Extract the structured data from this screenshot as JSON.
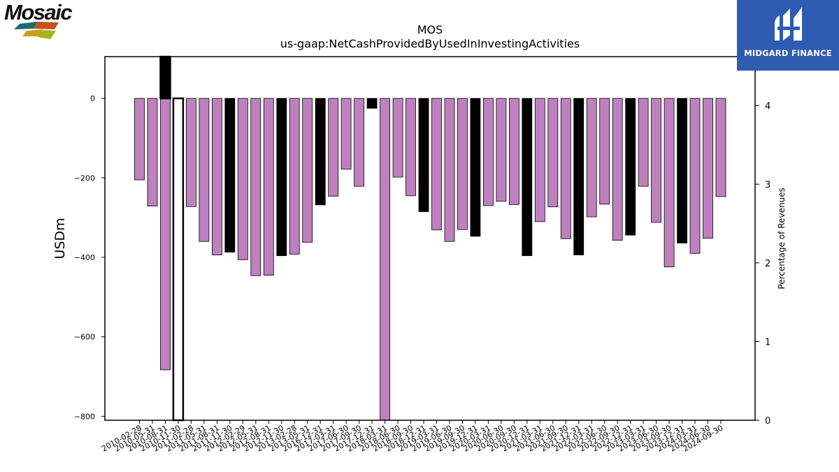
{
  "logos": {
    "company": "Mosaic",
    "publisher": "MIDGARD FINANCE"
  },
  "chart_data": {
    "type": "bar",
    "title": "MOS",
    "subtitle": "us-gaap:NetCashProvidedByUsedInInvestingActivities",
    "ylabel": "USDm",
    "y2label": "Percentage of Revenues",
    "ylim": [
      -810,
      105
    ],
    "y2lim": [
      0,
      4.62
    ],
    "yticks": [
      0,
      -200,
      -400,
      -600,
      -800
    ],
    "y2ticks": [
      0,
      1,
      2,
      3,
      4
    ],
    "grid": false,
    "colors": {
      "quarterly": "#bf80bf",
      "annual": "#000000"
    },
    "categories": [
      "2010-02-28",
      "2010-05-31",
      "2010-08-31",
      "2010-11-30",
      "2011-02-28",
      "2011-05-31",
      "2011-08-31",
      "2011-11-30",
      "2012-02-29",
      "2012-05-31",
      "2012-08-31",
      "2012-11-30",
      "2013-02-28",
      "2013-05-31",
      "2016-12-31",
      "2017-03-31",
      "2017-06-30",
      "2017-09-30",
      "2017-12-31",
      "2018-03-31",
      "2018-06-30",
      "2018-09-30",
      "2018-12-31",
      "2019-03-31",
      "2019-06-30",
      "2019-09-30",
      "2019-12-31",
      "2020-03-31",
      "2020-06-30",
      "2020-09-30",
      "2020-12-31",
      "2021-03-31",
      "2021-06-30",
      "2021-09-30",
      "2021-12-31",
      "2022-03-31",
      "2022-06-30",
      "2022-09-30",
      "2022-12-31",
      "2023-03-31",
      "2023-06-30",
      "2023-09-30",
      "2023-12-31",
      "2024-03-31",
      "2024-06-30",
      "2024-09-30"
    ],
    "series": [
      {
        "values": [
          -205,
          -271,
          -683,
          null,
          -272,
          -360,
          -394,
          -387,
          -406,
          -446,
          -445,
          -396,
          -392,
          -362,
          -268,
          -246,
          -178,
          -221,
          -25,
          -810,
          -198,
          -245,
          -285,
          -331,
          -360,
          -330,
          -347,
          -270,
          -259,
          -267,
          -396,
          -310,
          -273,
          -353,
          -394,
          -298,
          -266,
          -357,
          -344,
          -221,
          -312,
          -424,
          -364,
          -390,
          -352,
          -247
        ],
        "annual": [
          false,
          false,
          false,
          true,
          false,
          false,
          false,
          true,
          false,
          false,
          false,
          true,
          false,
          false,
          true,
          false,
          false,
          false,
          true,
          false,
          false,
          false,
          true,
          false,
          false,
          false,
          true,
          false,
          false,
          false,
          true,
          false,
          false,
          false,
          true,
          false,
          false,
          false,
          true,
          false,
          false,
          false,
          true,
          false,
          false,
          false
        ]
      }
    ],
    "outliers": [
      {
        "category": "2010-08-31",
        "value": 105
      },
      {
        "category": "2010-11-30",
        "value": -810
      }
    ]
  }
}
